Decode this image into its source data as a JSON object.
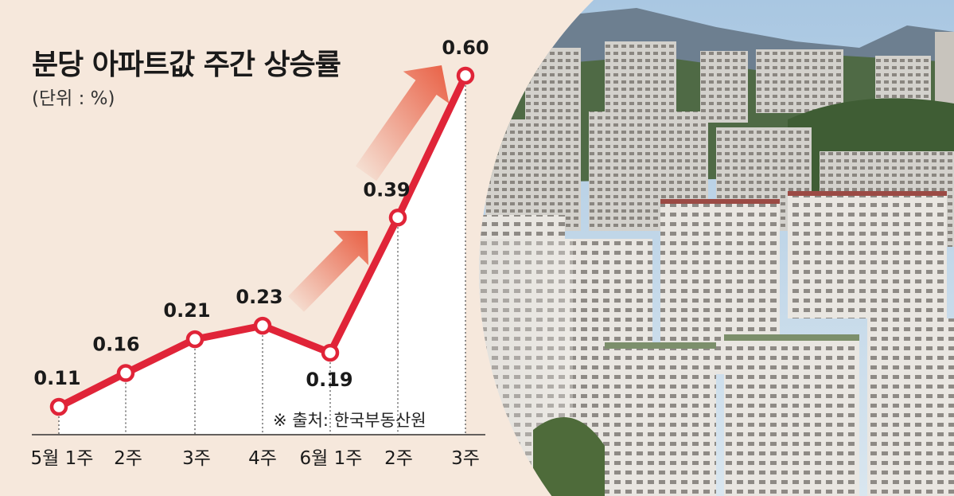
{
  "colors": {
    "line": "#e02438",
    "point_fill": "#ffffff",
    "background": "#f6e8dc",
    "arrow": "#e8583c",
    "text": "#1a1a1a"
  },
  "chart_data": {
    "type": "line",
    "title": "분당 아파트값 주간 상승률",
    "subtitle": "(단위 : %)",
    "source": "※ 출처: 한국부동산원",
    "categories": [
      "5월 1주",
      "2주",
      "3주",
      "4주",
      "6월 1주",
      "2주",
      "3주"
    ],
    "series": [
      {
        "values": [
          0.11,
          0.16,
          0.21,
          0.23,
          0.19,
          0.39,
          0.6
        ]
      }
    ],
    "data_labels": [
      "0.11",
      "0.16",
      "0.21",
      "0.23",
      "0.19",
      "0.39",
      "0.60"
    ],
    "ylim": [
      0,
      0.65
    ],
    "grid": "vertical dotted guide lines",
    "annotations": [
      "upward arrow",
      "upward arrow"
    ]
  },
  "photo": {
    "icon": "apartment-skyline-photo"
  }
}
